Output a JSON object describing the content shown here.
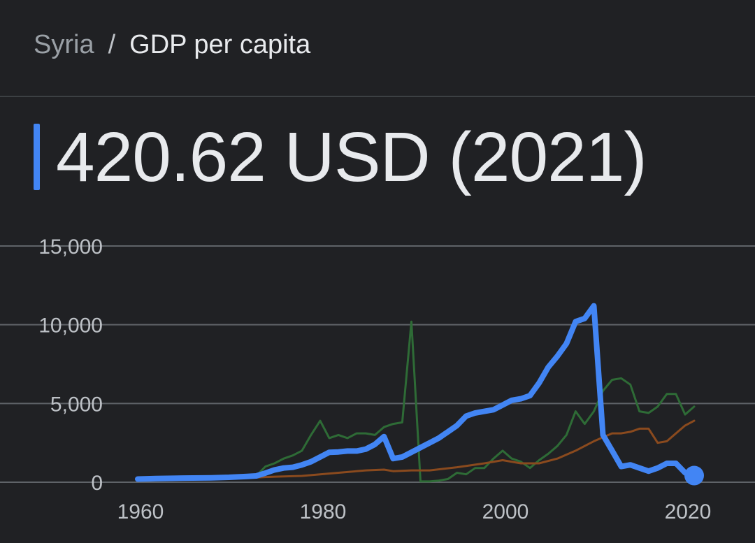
{
  "header": {
    "country": "Syria",
    "separator": "/",
    "metric": "GDP per capita"
  },
  "headline": {
    "value": "420.62 USD (2021)"
  },
  "colors": {
    "background": "#202124",
    "grid": "#5f6368",
    "accent": "#4285f4",
    "comparison_green": "#2e6b36",
    "comparison_brown": "#8a4a1e"
  },
  "chart_data": {
    "type": "line",
    "xlim": [
      1960,
      2021
    ],
    "ylim": [
      0,
      15000
    ],
    "x_ticks": [
      1960,
      1980,
      2000,
      2020
    ],
    "x_tick_labels": [
      "1960",
      "1980",
      "2000",
      "2020"
    ],
    "y_ticks": [
      0,
      5000,
      10000,
      15000
    ],
    "y_tick_labels": [
      "0",
      "5,000",
      "10,000",
      "15,000"
    ],
    "grid": true,
    "legend": "none",
    "highlight_point": {
      "x": 2021,
      "y": 420.62
    },
    "series": [
      {
        "color": "#4285f4",
        "primary": true,
        "points": [
          [
            1960,
            200
          ],
          [
            1962,
            230
          ],
          [
            1965,
            260
          ],
          [
            1968,
            280
          ],
          [
            1970,
            310
          ],
          [
            1972,
            370
          ],
          [
            1973,
            400
          ],
          [
            1974,
            580
          ],
          [
            1975,
            780
          ],
          [
            1976,
            900
          ],
          [
            1977,
            950
          ],
          [
            1978,
            1100
          ],
          [
            1979,
            1300
          ],
          [
            1980,
            1600
          ],
          [
            1981,
            1900
          ],
          [
            1982,
            1920
          ],
          [
            1983,
            1980
          ],
          [
            1984,
            1980
          ],
          [
            1985,
            2100
          ],
          [
            1986,
            2400
          ],
          [
            1987,
            2900
          ],
          [
            1988,
            1500
          ],
          [
            1989,
            1600
          ],
          [
            1990,
            1900
          ],
          [
            1991,
            2200
          ],
          [
            1992,
            2500
          ],
          [
            1993,
            2800
          ],
          [
            1994,
            3200
          ],
          [
            1995,
            3600
          ],
          [
            1996,
            4200
          ],
          [
            1997,
            4400
          ],
          [
            1998,
            4500
          ],
          [
            1999,
            4600
          ],
          [
            2000,
            4900
          ],
          [
            2001,
            5200
          ],
          [
            2002,
            5300
          ],
          [
            2003,
            5500
          ],
          [
            2004,
            6300
          ],
          [
            2005,
            7300
          ],
          [
            2006,
            8000
          ],
          [
            2007,
            8800
          ],
          [
            2008,
            10200
          ],
          [
            2009,
            10400
          ],
          [
            2010,
            11200
          ],
          [
            2011,
            3000
          ],
          [
            2012,
            2000
          ],
          [
            2013,
            1000
          ],
          [
            2014,
            1100
          ],
          [
            2015,
            900
          ],
          [
            2016,
            700
          ],
          [
            2017,
            900
          ],
          [
            2018,
            1200
          ],
          [
            2019,
            1200
          ],
          [
            2020,
            600
          ],
          [
            2021,
            420.62
          ]
        ]
      },
      {
        "color": "#2e6b36",
        "primary": false,
        "points": [
          [
            1973,
            400
          ],
          [
            1974,
            1000
          ],
          [
            1975,
            1200
          ],
          [
            1976,
            1500
          ],
          [
            1977,
            1700
          ],
          [
            1978,
            2000
          ],
          [
            1979,
            3000
          ],
          [
            1980,
            3900
          ],
          [
            1981,
            2800
          ],
          [
            1982,
            3000
          ],
          [
            1983,
            2800
          ],
          [
            1984,
            3100
          ],
          [
            1985,
            3100
          ],
          [
            1986,
            3000
          ],
          [
            1987,
            3500
          ],
          [
            1988,
            3700
          ],
          [
            1989,
            3800
          ],
          [
            1990,
            10200
          ],
          [
            1991,
            50
          ],
          [
            1992,
            50
          ],
          [
            1993,
            100
          ],
          [
            1994,
            200
          ],
          [
            1995,
            600
          ],
          [
            1996,
            500
          ],
          [
            1997,
            900
          ],
          [
            1998,
            900
          ],
          [
            1999,
            1500
          ],
          [
            2000,
            2000
          ],
          [
            2001,
            1500
          ],
          [
            2002,
            1300
          ],
          [
            2003,
            900
          ],
          [
            2004,
            1400
          ],
          [
            2005,
            1800
          ],
          [
            2006,
            2300
          ],
          [
            2007,
            3000
          ],
          [
            2008,
            4500
          ],
          [
            2009,
            3700
          ],
          [
            2010,
            4500
          ],
          [
            2011,
            5800
          ],
          [
            2012,
            6500
          ],
          [
            2013,
            6600
          ],
          [
            2014,
            6200
          ],
          [
            2015,
            4500
          ],
          [
            2016,
            4400
          ],
          [
            2017,
            4800
          ],
          [
            2018,
            5600
          ],
          [
            2019,
            5600
          ],
          [
            2020,
            4300
          ],
          [
            2021,
            4800
          ]
        ]
      },
      {
        "color": "#8a4a1e",
        "primary": false,
        "points": [
          [
            1973,
            300
          ],
          [
            1975,
            350
          ],
          [
            1978,
            400
          ],
          [
            1980,
            500
          ],
          [
            1982,
            600
          ],
          [
            1985,
            750
          ],
          [
            1987,
            800
          ],
          [
            1988,
            700
          ],
          [
            1990,
            750
          ],
          [
            1992,
            750
          ],
          [
            1995,
            950
          ],
          [
            1998,
            1200
          ],
          [
            2000,
            1400
          ],
          [
            2002,
            1200
          ],
          [
            2004,
            1200
          ],
          [
            2006,
            1500
          ],
          [
            2008,
            2000
          ],
          [
            2010,
            2600
          ],
          [
            2012,
            3100
          ],
          [
            2013,
            3100
          ],
          [
            2014,
            3200
          ],
          [
            2015,
            3400
          ],
          [
            2016,
            3400
          ],
          [
            2017,
            2500
          ],
          [
            2018,
            2600
          ],
          [
            2019,
            3100
          ],
          [
            2020,
            3600
          ],
          [
            2021,
            3900
          ]
        ]
      }
    ]
  }
}
